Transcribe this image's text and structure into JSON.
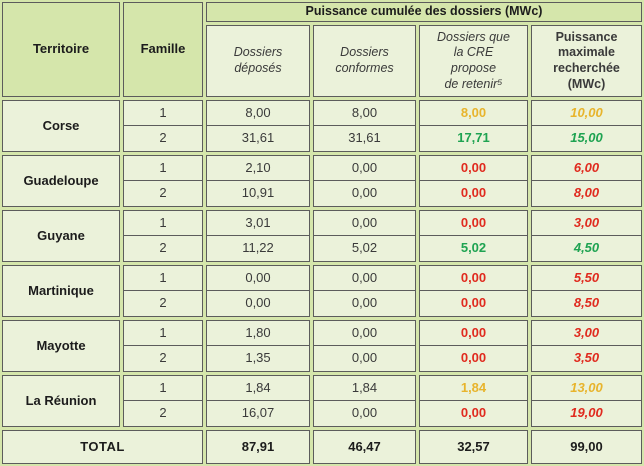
{
  "table": {
    "header": {
      "territoire": "Territoire",
      "famille": "Famille",
      "group_title": "Puissance cumulée des dossiers (MWc)",
      "sub_deposes": "Dossiers\ndéposés",
      "sub_conformes": "Dossiers\nconformes",
      "sub_cre": "Dossiers que\nla CRE\npropose\nde retenir⁵",
      "sub_pmax": "Puissance\nmaximale\nrecherchée\n(MWc)"
    },
    "groups": [
      {
        "territory": "Corse",
        "rows": [
          {
            "famille": "1",
            "deposes": "8,00",
            "conformes": "8,00",
            "cre": {
              "value": "8,00",
              "color": "orange"
            },
            "pmax": {
              "value": "10,00",
              "color": "orange"
            }
          },
          {
            "famille": "2",
            "deposes": "31,61",
            "conformes": "31,61",
            "cre": {
              "value": "17,71",
              "color": "green"
            },
            "pmax": {
              "value": "15,00",
              "color": "green"
            }
          }
        ]
      },
      {
        "territory": "Guadeloupe",
        "rows": [
          {
            "famille": "1",
            "deposes": "2,10",
            "conformes": "0,00",
            "cre": {
              "value": "0,00",
              "color": "red"
            },
            "pmax": {
              "value": "6,00",
              "color": "red"
            }
          },
          {
            "famille": "2",
            "deposes": "10,91",
            "conformes": "0,00",
            "cre": {
              "value": "0,00",
              "color": "red"
            },
            "pmax": {
              "value": "8,00",
              "color": "red"
            }
          }
        ]
      },
      {
        "territory": "Guyane",
        "rows": [
          {
            "famille": "1",
            "deposes": "3,01",
            "conformes": "0,00",
            "cre": {
              "value": "0,00",
              "color": "red"
            },
            "pmax": {
              "value": "3,00",
              "color": "red"
            }
          },
          {
            "famille": "2",
            "deposes": "11,22",
            "conformes": "5,02",
            "cre": {
              "value": "5,02",
              "color": "green"
            },
            "pmax": {
              "value": "4,50",
              "color": "green"
            }
          }
        ]
      },
      {
        "territory": "Martinique",
        "rows": [
          {
            "famille": "1",
            "deposes": "0,00",
            "conformes": "0,00",
            "cre": {
              "value": "0,00",
              "color": "red"
            },
            "pmax": {
              "value": "5,50",
              "color": "red"
            }
          },
          {
            "famille": "2",
            "deposes": "0,00",
            "conformes": "0,00",
            "cre": {
              "value": "0,00",
              "color": "red"
            },
            "pmax": {
              "value": "8,50",
              "color": "red"
            }
          }
        ]
      },
      {
        "territory": "Mayotte",
        "rows": [
          {
            "famille": "1",
            "deposes": "1,80",
            "conformes": "0,00",
            "cre": {
              "value": "0,00",
              "color": "red"
            },
            "pmax": {
              "value": "3,00",
              "color": "red"
            }
          },
          {
            "famille": "2",
            "deposes": "1,35",
            "conformes": "0,00",
            "cre": {
              "value": "0,00",
              "color": "red"
            },
            "pmax": {
              "value": "3,50",
              "color": "red"
            }
          }
        ]
      },
      {
        "territory": "La Réunion",
        "rows": [
          {
            "famille": "1",
            "deposes": "1,84",
            "conformes": "1,84",
            "cre": {
              "value": "1,84",
              "color": "orange"
            },
            "pmax": {
              "value": "13,00",
              "color": "orange"
            }
          },
          {
            "famille": "2",
            "deposes": "16,07",
            "conformes": "0,00",
            "cre": {
              "value": "0,00",
              "color": "red"
            },
            "pmax": {
              "value": "19,00",
              "color": "red"
            }
          }
        ]
      }
    ],
    "total": {
      "label": "TOTAL",
      "deposes": "87,91",
      "conformes": "46,47",
      "cre": "32,57",
      "pmax": "99,00"
    }
  },
  "colors": {
    "orange": "#e8b42c",
    "green": "#1ea351",
    "red": "#e02a1e",
    "header_bg": "#d5e6ab",
    "cell_bg": "#ebf2da"
  }
}
